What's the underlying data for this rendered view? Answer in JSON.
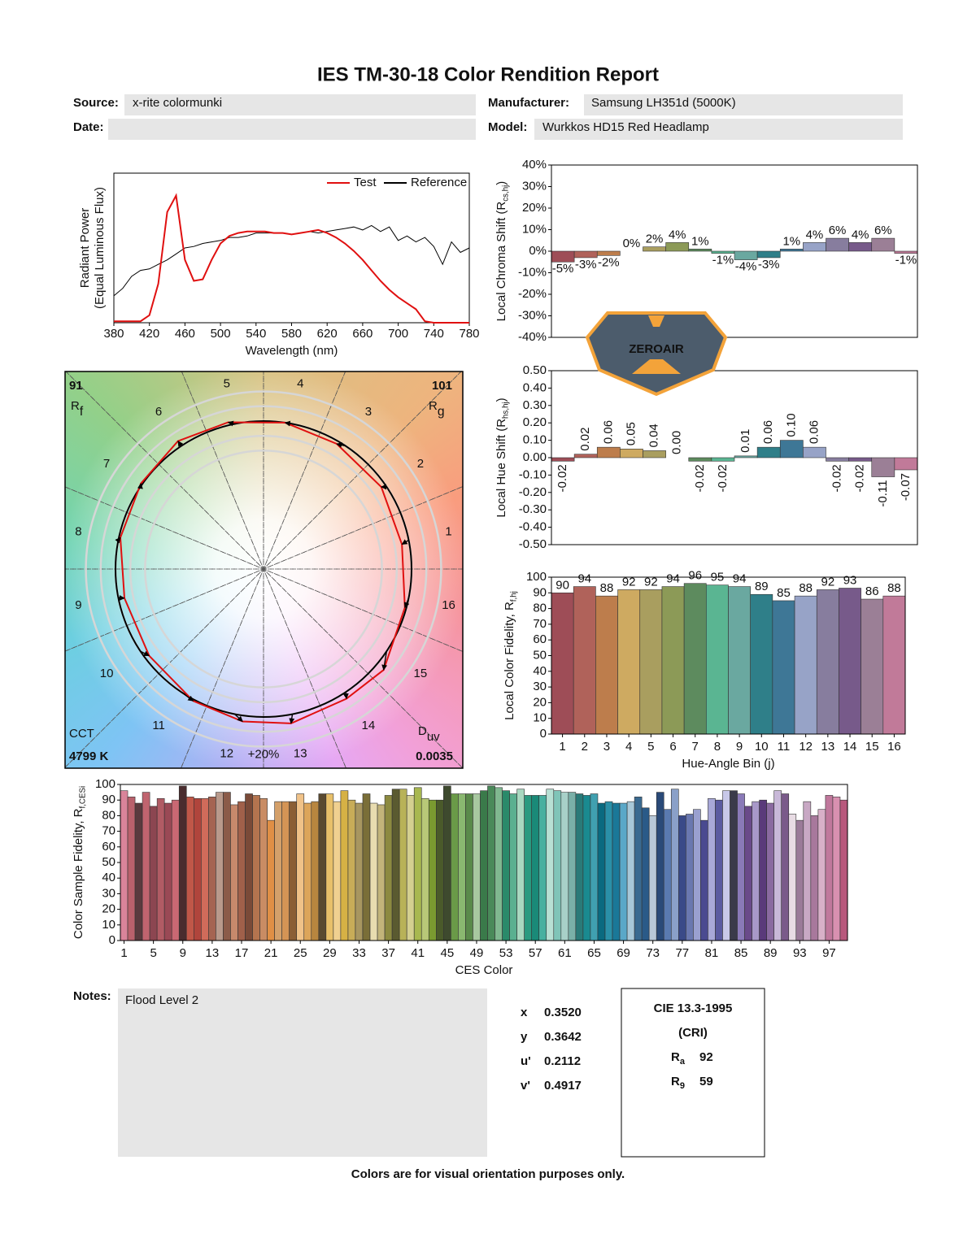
{
  "header": {
    "title": "IES TM-30-18 Color Rendition Report",
    "source_label": "Source:",
    "source": "x-rite colormunki",
    "manufacturer_label": "Manufacturer:",
    "manufacturer": "Samsung LH351d (5000K)",
    "date_label": "Date:",
    "model_label": "Model:",
    "model": "Wurkkos HD15 Red Headlamp"
  },
  "chart_data": [
    {
      "type": "line",
      "xlabel": "Wavelength (nm)",
      "ylabel": "Radiant Power",
      "ylabel_note": "(Equal Luminous Flux)",
      "x": [
        380,
        390,
        400,
        410,
        420,
        430,
        440,
        450,
        460,
        470,
        480,
        490,
        500,
        510,
        520,
        530,
        540,
        550,
        560,
        570,
        580,
        590,
        600,
        610,
        620,
        630,
        640,
        650,
        660,
        670,
        680,
        690,
        700,
        710,
        720,
        730,
        740,
        750,
        760,
        770,
        780
      ],
      "xlim": [
        380,
        780
      ],
      "xticks": [
        380,
        420,
        460,
        500,
        540,
        580,
        620,
        660,
        700,
        740,
        780
      ],
      "ylim": [
        0,
        1
      ],
      "legend": "upper right",
      "series": [
        {
          "name": "Test",
          "color": "#e01010",
          "values": [
            0.01,
            0.01,
            0.01,
            0.01,
            0.05,
            0.26,
            0.74,
            0.85,
            0.42,
            0.28,
            0.29,
            0.42,
            0.53,
            0.58,
            0.6,
            0.61,
            0.61,
            0.61,
            0.6,
            0.6,
            0.59,
            0.6,
            0.61,
            0.62,
            0.6,
            0.57,
            0.53,
            0.48,
            0.42,
            0.35,
            0.28,
            0.22,
            0.17,
            0.13,
            0.09,
            0.01,
            0,
            0,
            0,
            0,
            0
          ]
        },
        {
          "name": "Reference",
          "color": "#000000",
          "values": [
            0.18,
            0.23,
            0.31,
            0.35,
            0.36,
            0.39,
            0.42,
            0.46,
            0.5,
            0.51,
            0.53,
            0.54,
            0.55,
            0.57,
            0.57,
            0.58,
            0.6,
            0.6,
            0.6,
            0.6,
            0.59,
            0.6,
            0.61,
            0.6,
            0.61,
            0.62,
            0.63,
            0.64,
            0.62,
            0.65,
            0.61,
            0.64,
            0.55,
            0.58,
            0.54,
            0.57,
            0.51,
            0.39,
            0.54,
            0.47,
            0.5
          ]
        }
      ]
    },
    {
      "type": "bar",
      "ylabel": [
        "Local Chroma Shift (R",
        "cs,hj",
        ")"
      ],
      "values": [
        -5,
        -3,
        -2,
        0,
        2,
        4,
        1,
        -1,
        -4,
        -3,
        1,
        4,
        6,
        4,
        6,
        -1
      ],
      "value_labels": [
        "-5%",
        "-3%",
        "-2%",
        "0%",
        "2%",
        "4%",
        "1%",
        "-1%",
        "-4%",
        "-3%",
        "1%",
        "4%",
        "6%",
        "4%",
        "6%",
        "-1%"
      ],
      "colors": [
        "#9e4d57",
        "#b0625a",
        "#bd7d4c",
        "#ceaa61",
        "#a99e5f",
        "#8c9a57",
        "#5d8b5e",
        "#5ab592",
        "#6aa8a0",
        "#2f7f89",
        "#3e7796",
        "#97a3c7",
        "#877d9e",
        "#775a8a",
        "#9b7f96",
        "#c17a99"
      ],
      "ylim": [
        -40,
        40
      ],
      "yticks": [
        {
          "value": -40,
          "label": "-40%"
        },
        {
          "value": -30,
          "label": "-30%"
        },
        {
          "value": -20,
          "label": "-20%"
        },
        {
          "value": -10,
          "label": "-10%"
        },
        {
          "value": 0,
          "label": "0%"
        },
        {
          "value": 10,
          "label": "10%"
        },
        {
          "value": 20,
          "label": "20%"
        },
        {
          "value": 30,
          "label": "30%"
        },
        {
          "value": 40,
          "label": "40%"
        }
      ]
    },
    {
      "type": "bar",
      "ylabel": [
        "Local Hue Shift (R",
        "hs,hj",
        ")"
      ],
      "values": [
        -0.02,
        0.02,
        0.06,
        0.05,
        0.04,
        0,
        -0.02,
        -0.02,
        0.01,
        0.06,
        0.1,
        0.06,
        -0.02,
        -0.02,
        -0.11,
        -0.07
      ],
      "value_labels": [
        "-0.02",
        "0.02",
        "0.06",
        "0.05",
        "0.04",
        "0.00",
        "-0.02",
        "-0.02",
        "0.01",
        "0.06",
        "0.10",
        "0.06",
        "-0.02",
        "-0.02",
        "-0.11",
        "-0.07"
      ],
      "colors": [
        "#9e4d57",
        "#b0625a",
        "#bd7d4c",
        "#ceaa61",
        "#a99e5f",
        "#8c9a57",
        "#5d8b5e",
        "#5ab592",
        "#6aa8a0",
        "#2f7f89",
        "#3e7796",
        "#97a3c7",
        "#877d9e",
        "#775a8a",
        "#9b7f96",
        "#c17a99"
      ],
      "ylim": [
        -0.5,
        0.5
      ],
      "yticks": [
        {
          "value": -0.5,
          "label": "-0.50"
        },
        {
          "value": -0.4,
          "label": "-0.40"
        },
        {
          "value": -0.3,
          "label": "-0.30"
        },
        {
          "value": -0.2,
          "label": "-0.20"
        },
        {
          "value": -0.1,
          "label": "-0.10"
        },
        {
          "value": 0,
          "label": "0.00"
        },
        {
          "value": 0.1,
          "label": "0.10"
        },
        {
          "value": 0.2,
          "label": "0.20"
        },
        {
          "value": 0.3,
          "label": "0.30"
        },
        {
          "value": 0.4,
          "label": "0.40"
        },
        {
          "value": 0.5,
          "label": "0.50"
        }
      ]
    },
    {
      "type": "bar",
      "xlabel": "Hue-Angle Bin (j)",
      "ylabel": [
        "Local Color Fidelity, R",
        "f,hj"
      ],
      "categories": [
        "1",
        "2",
        "3",
        "4",
        "5",
        "6",
        "7",
        "8",
        "9",
        "10",
        "11",
        "12",
        "13",
        "14",
        "15",
        "16"
      ],
      "values": [
        90,
        94,
        88,
        92,
        92,
        94,
        96,
        95,
        94,
        89,
        85,
        88,
        92,
        93,
        86,
        88
      ],
      "colors": [
        "#9e4d57",
        "#b0625a",
        "#bd7d4c",
        "#ceaa61",
        "#a99e5f",
        "#8c9a57",
        "#5d8b5e",
        "#5ab592",
        "#6aa8a0",
        "#2f7f89",
        "#3e7796",
        "#97a3c7",
        "#877d9e",
        "#775a8a",
        "#9b7f96",
        "#c17a99"
      ],
      "ylim": [
        0,
        100
      ],
      "yticks": [
        0,
        10,
        20,
        30,
        40,
        50,
        60,
        70,
        80,
        90,
        100
      ]
    },
    {
      "type": "bar",
      "xlabel": "CES Color",
      "ylabel": [
        "Color Sample Fidelity, R",
        "f,CESi"
      ],
      "categories": [
        "1",
        null,
        null,
        null,
        "5",
        null,
        null,
        null,
        "9",
        null,
        null,
        null,
        "13",
        null,
        null,
        null,
        "17",
        null,
        null,
        null,
        "21",
        null,
        null,
        null,
        "25",
        null,
        null,
        null,
        "29",
        null,
        null,
        null,
        "33",
        null,
        null,
        null,
        "37",
        null,
        null,
        null,
        "41",
        null,
        null,
        null,
        "45",
        null,
        null,
        null,
        "49",
        null,
        null,
        null,
        "53",
        null,
        null,
        null,
        "57",
        null,
        null,
        null,
        "61",
        null,
        null,
        null,
        "65",
        null,
        null,
        null,
        "69",
        null,
        null,
        null,
        "73",
        null,
        null,
        null,
        "77",
        null,
        null,
        null,
        "81",
        null,
        null,
        null,
        "85",
        null,
        null,
        null,
        "89",
        null,
        null,
        null,
        "93",
        null,
        null,
        null,
        "97",
        null,
        null
      ],
      "values": [
        96,
        92,
        88,
        95,
        86,
        91,
        88,
        90,
        99,
        92,
        91,
        91,
        92,
        95,
        95,
        87,
        89,
        94,
        93,
        91,
        77,
        89,
        89,
        89,
        94,
        88,
        89,
        94,
        94,
        89,
        96,
        90,
        88,
        94,
        88,
        87,
        93,
        97,
        97,
        93,
        98,
        91,
        90,
        90,
        99,
        94,
        94,
        94,
        94,
        96,
        99,
        98,
        96,
        94,
        97,
        93,
        93,
        93,
        97,
        96,
        95,
        95,
        94,
        93,
        94,
        88,
        89,
        88,
        88,
        89,
        92,
        85,
        80,
        95,
        84,
        97,
        80,
        81,
        84,
        77,
        91,
        90,
        96,
        96,
        94,
        86,
        89,
        90,
        88,
        96,
        94,
        81,
        77,
        89,
        80,
        84,
        93,
        92,
        90
      ],
      "colors": [
        "#d9849a",
        "#b9616c",
        "#5a3a3e",
        "#c0646f",
        "#8c4651",
        "#b15b64",
        "#9a4955",
        "#c96873",
        "#4a2c2e",
        "#c05748",
        "#b0453c",
        "#d06b5a",
        "#a56452",
        "#b99a8c",
        "#8b5b49",
        "#c7896c",
        "#a0604a",
        "#7a4a38",
        "#b4744f",
        "#c98c64",
        "#e08f45",
        "#d4a06a",
        "#d49455",
        "#8a5e35",
        "#f0c288",
        "#dca55a",
        "#b8863f",
        "#5a4a30",
        "#e8c06a",
        "#f0d090",
        "#d6b145",
        "#c8ac58",
        "#a89660",
        "#7a6e38",
        "#e8dcb0",
        "#c2b47a",
        "#8c8a40",
        "#5a5a30",
        "#b8b258",
        "#d4d090",
        "#a8b850",
        "#b8c878",
        "#7a9a30",
        "#4a5a2a",
        "#3e4a2e",
        "#6a9a48",
        "#8ab870",
        "#5a8a4a",
        "#a8c8a0",
        "#3a7a4a",
        "#4a8a5a",
        "#80b890",
        "#2a8a6a",
        "#5ab090",
        "#a8d8c0",
        "#2a9a80",
        "#1a8a78",
        "#48b0a0",
        "#b8e0d4",
        "#80c4b8",
        "#a8d0c8",
        "#7ab0a8",
        "#2a7a78",
        "#1a8a90",
        "#40a0b0",
        "#0a6a80",
        "#2a90a8",
        "#1a7898",
        "#5aa8c8",
        "#a8c8d8",
        "#3a6a90",
        "#2a5a88",
        "#b8c8d8",
        "#2a4a78",
        "#5a7ab0",
        "#8aa0c8",
        "#3a4a88",
        "#6a78b0",
        "#9aa0d0",
        "#4a4a90",
        "#a8a8d8",
        "#5a5aa0",
        "#c8c8e8",
        "#3a3a4a",
        "#8a7ab8",
        "#6a4a8a",
        "#a898c8",
        "#5a3a7a",
        "#8a6aa0",
        "#c8b8d8",
        "#7a5a8a",
        "#e8dce4",
        "#9a7a98",
        "#c8a8c4",
        "#a8789c",
        "#d8b0c8",
        "#c0789c",
        "#d890b0",
        "#b8587c"
      ],
      "ylim": [
        0,
        100
      ],
      "yticks": [
        0,
        10,
        20,
        30,
        40,
        50,
        60,
        70,
        80,
        90,
        100
      ]
    }
  ],
  "vector_graphic": {
    "bins": [
      "1",
      "2",
      "3",
      "4",
      "5",
      "6",
      "7",
      "8",
      "9",
      "10",
      "11",
      "12",
      "13",
      "14",
      "15",
      "16"
    ],
    "rf": 91,
    "rf_label": [
      "R",
      "f"
    ],
    "rg": 101,
    "rg_label": [
      "R",
      "g"
    ],
    "cct_label": "CCT",
    "cct": "4799 K",
    "duv_label": [
      "D",
      "uv"
    ],
    "duv": "0.0035",
    "ring_label": "+20%",
    "test_color": "#e01010",
    "reference_color": "#000000"
  },
  "notes": {
    "label": "Notes:",
    "text": "Flood Level 2"
  },
  "chromaticity": [
    {
      "label": "x",
      "value": "0.3520"
    },
    {
      "label": "y",
      "value": "0.3642"
    },
    {
      "label": "u'",
      "value": "0.2112"
    },
    {
      "label": "v'",
      "value": "0.4917"
    }
  ],
  "cri": {
    "title": "CIE 13.3-1995",
    "subtitle": "(CRI)",
    "items": [
      {
        "symbol": "R",
        "sub": "a",
        "value": 92
      },
      {
        "symbol": "R",
        "sub": "9",
        "value": 59
      }
    ]
  },
  "footer": "Colors are for visual orientation purposes only.",
  "watermark": "ZEROAIR"
}
